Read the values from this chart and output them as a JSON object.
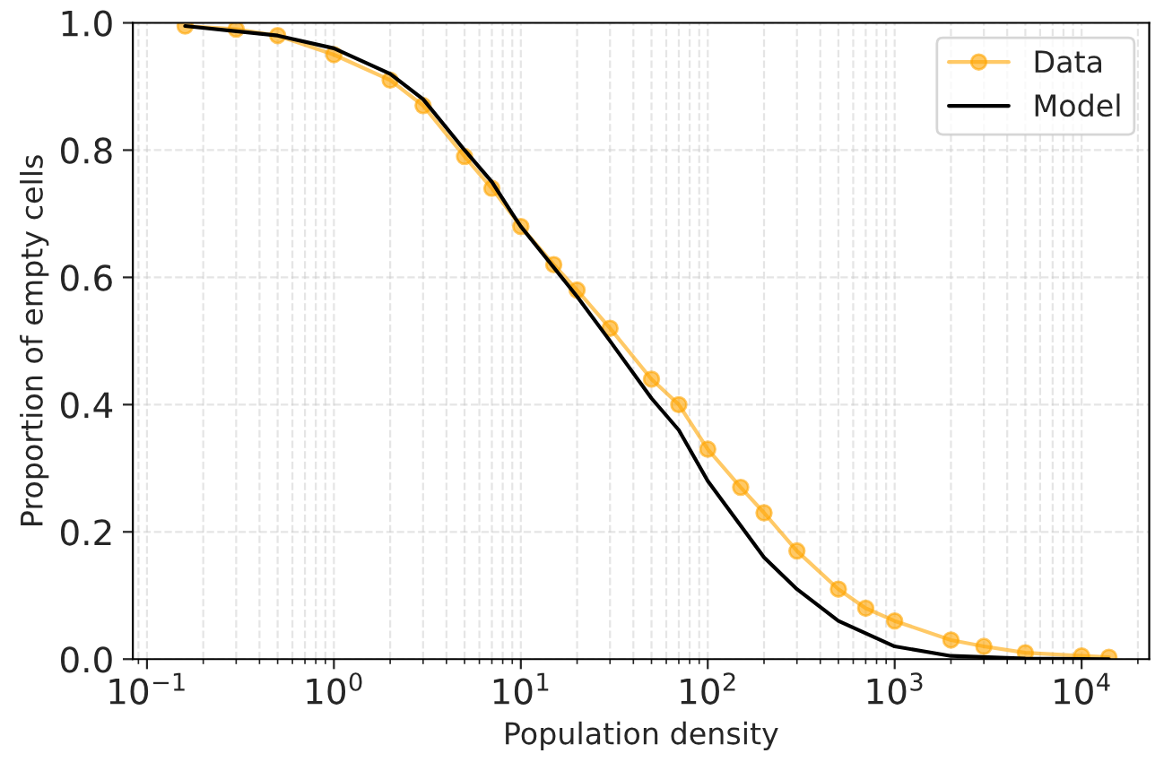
{
  "chart_data": {
    "type": "line",
    "xlabel": "Population density",
    "ylabel": "Proportion of empty cells",
    "log": "x",
    "grid": true,
    "legend": "top right",
    "xlim": [
      0.084,
      23000
    ],
    "ylim": [
      0,
      1
    ],
    "xticks": [
      {
        "value": 0.1,
        "label": "10$^{−1}$"
      },
      {
        "value": 1,
        "label": "10$^{0}$"
      },
      {
        "value": 10,
        "label": "10$^{1}$"
      },
      {
        "value": 100,
        "label": "10$^{2}$"
      },
      {
        "value": 1000,
        "label": "10$^{3}$"
      },
      {
        "value": 10000,
        "label": "10$^{4}$"
      }
    ],
    "yticks": [
      {
        "value": 0,
        "label": "0.0"
      },
      {
        "value": 0.2,
        "label": "0.2"
      },
      {
        "value": 0.4,
        "label": "0.4"
      },
      {
        "value": 0.6,
        "label": "0.6"
      },
      {
        "value": 0.8,
        "label": "0.8"
      },
      {
        "value": 1,
        "label": "1.0"
      }
    ],
    "series": [
      {
        "name": "Data",
        "color": "#ffa500",
        "marker": "circle",
        "line_style": "solid",
        "x": [
          0.16,
          0.3,
          0.5,
          1,
          2,
          3,
          5,
          7,
          10,
          15,
          20,
          30,
          50,
          70,
          100,
          150,
          200,
          300,
          500,
          700,
          1000,
          2000,
          3000,
          5000,
          10000,
          14000
        ],
        "values": [
          0.995,
          0.99,
          0.98,
          0.95,
          0.91,
          0.87,
          0.79,
          0.74,
          0.68,
          0.62,
          0.58,
          0.52,
          0.44,
          0.4,
          0.33,
          0.27,
          0.23,
          0.17,
          0.11,
          0.08,
          0.06,
          0.03,
          0.02,
          0.01,
          0.005,
          0.003
        ]
      },
      {
        "name": "Model",
        "color": "#000000",
        "marker": "none",
        "line_style": "solid",
        "x": [
          0.16,
          0.5,
          1,
          2,
          3,
          5,
          7,
          9,
          10,
          20,
          30,
          50,
          70,
          100,
          200,
          300,
          500,
          1000,
          2000,
          5000,
          14000
        ],
        "values": [
          0.995,
          0.98,
          0.96,
          0.92,
          0.88,
          0.8,
          0.75,
          0.7,
          0.68,
          0.57,
          0.5,
          0.41,
          0.36,
          0.28,
          0.16,
          0.11,
          0.06,
          0.02,
          0.005,
          0.001,
          0
        ]
      }
    ]
  }
}
